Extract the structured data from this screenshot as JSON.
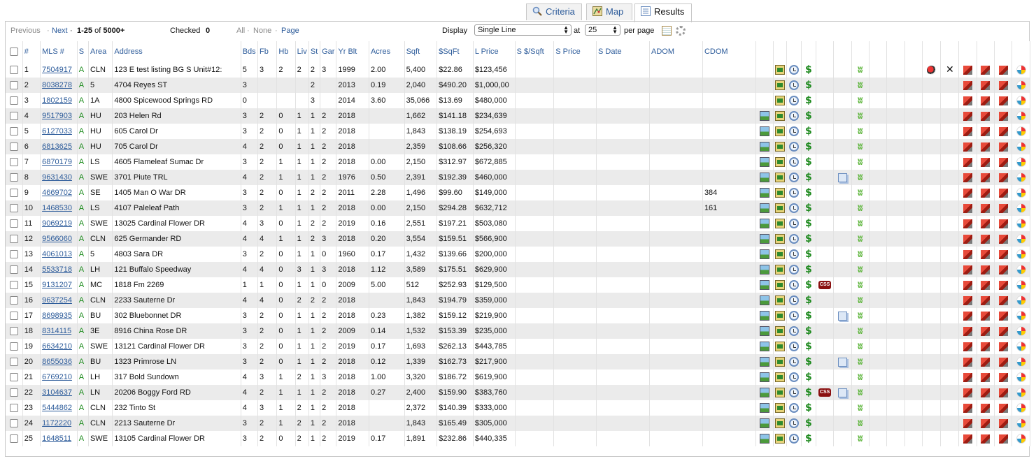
{
  "tabs": [
    {
      "label": "Criteria",
      "icon": "magnifier-icon"
    },
    {
      "label": "Map",
      "icon": "map-icon"
    },
    {
      "label": "Results",
      "icon": "list-icon"
    }
  ],
  "toolbar": {
    "previous": "Previous",
    "sep1": "·",
    "next": "Next",
    "sep2": "·",
    "range": "1-25",
    "of": "of",
    "total": "5000+",
    "checked_label": "Checked",
    "checked_count": "0",
    "all": "All",
    "sep3": "·",
    "none": "None",
    "sep4": "·",
    "page": "Page",
    "display_label": "Display",
    "display_value": "Single Line",
    "at_label": "at",
    "per_page_value": "25",
    "per_page_label": "per page"
  },
  "columns": [
    "#",
    "MLS #",
    "S",
    "Area",
    "Address",
    "Bds",
    "Fb",
    "Hb",
    "Liv",
    "St",
    "Gar",
    "Yr Blt",
    "Acres",
    "Sqft",
    "$SqFt",
    "L Price",
    "S $/Sqft",
    "S Price",
    "S Date",
    "ADOM",
    "CDOM"
  ],
  "rows": [
    {
      "num": "1",
      "mls": "7504917",
      "s": "A",
      "area": "CLN",
      "address": "123 E test listing BG S Unit#12:",
      "bds": "5",
      "fb": "3",
      "hb": "2",
      "liv": "2",
      "st": "2",
      "gar": "3",
      "yr": "1999",
      "acres": "2.00",
      "sqft": "5,400",
      "psf": "$22.86",
      "lprice": "$123,456",
      "cdom": ""
    },
    {
      "num": "2",
      "mls": "8038278",
      "s": "A",
      "area": "5",
      "address": "4704 Reyes ST",
      "bds": "3",
      "fb": "",
      "hb": "",
      "liv": "",
      "st": "2",
      "gar": "",
      "yr": "2013",
      "acres": "0.19",
      "sqft": "2,040",
      "psf": "$490.20",
      "lprice": "$1,000,00",
      "cdom": ""
    },
    {
      "num": "3",
      "mls": "1802159",
      "s": "A",
      "area": "1A",
      "address": "4800 Spicewood Springs RD",
      "bds": "0",
      "fb": "",
      "hb": "",
      "liv": "",
      "st": "3",
      "gar": "",
      "yr": "2014",
      "acres": "3.60",
      "sqft": "35,066",
      "psf": "$13.69",
      "lprice": "$480,000",
      "cdom": ""
    },
    {
      "num": "4",
      "mls": "9517903",
      "s": "A",
      "area": "HU",
      "address": "203 Helen Rd",
      "bds": "3",
      "fb": "2",
      "hb": "0",
      "liv": "1",
      "st": "1",
      "gar": "2",
      "yr": "2018",
      "acres": "",
      "sqft": "1,662",
      "psf": "$141.18",
      "lprice": "$234,639",
      "cdom": ""
    },
    {
      "num": "5",
      "mls": "6127033",
      "s": "A",
      "area": "HU",
      "address": "605 Carol Dr",
      "bds": "3",
      "fb": "2",
      "hb": "0",
      "liv": "1",
      "st": "1",
      "gar": "2",
      "yr": "2018",
      "acres": "",
      "sqft": "1,843",
      "psf": "$138.19",
      "lprice": "$254,693",
      "cdom": ""
    },
    {
      "num": "6",
      "mls": "6813625",
      "s": "A",
      "area": "HU",
      "address": "705 Carol Dr",
      "bds": "4",
      "fb": "2",
      "hb": "0",
      "liv": "1",
      "st": "1",
      "gar": "2",
      "yr": "2018",
      "acres": "",
      "sqft": "2,359",
      "psf": "$108.66",
      "lprice": "$256,320",
      "cdom": ""
    },
    {
      "num": "7",
      "mls": "6870179",
      "s": "A",
      "area": "LS",
      "address": "4605 Flameleaf Sumac Dr",
      "bds": "3",
      "fb": "2",
      "hb": "1",
      "liv": "1",
      "st": "1",
      "gar": "2",
      "yr": "2018",
      "acres": "0.00",
      "sqft": "2,150",
      "psf": "$312.97",
      "lprice": "$672,885",
      "cdom": ""
    },
    {
      "num": "8",
      "mls": "9631430",
      "s": "A",
      "area": "SWE",
      "address": "3701 Piute TRL",
      "bds": "4",
      "fb": "2",
      "hb": "1",
      "liv": "1",
      "st": "1",
      "gar": "2",
      "yr": "1976",
      "acres": "0.50",
      "sqft": "2,391",
      "psf": "$192.39",
      "lprice": "$460,000",
      "cdom": ""
    },
    {
      "num": "9",
      "mls": "4669702",
      "s": "A",
      "area": "SE",
      "address": "1405 Man O War DR",
      "bds": "3",
      "fb": "2",
      "hb": "0",
      "liv": "1",
      "st": "2",
      "gar": "2",
      "yr": "2011",
      "acres": "2.28",
      "sqft": "1,496",
      "psf": "$99.60",
      "lprice": "$149,000",
      "cdom": "384"
    },
    {
      "num": "10",
      "mls": "1468530",
      "s": "A",
      "area": "LS",
      "address": "4107 Paleleaf Path",
      "bds": "3",
      "fb": "2",
      "hb": "1",
      "liv": "1",
      "st": "1",
      "gar": "2",
      "yr": "2018",
      "acres": "0.00",
      "sqft": "2,150",
      "psf": "$294.28",
      "lprice": "$632,712",
      "cdom": "161"
    },
    {
      "num": "11",
      "mls": "9069219",
      "s": "A",
      "area": "SWE",
      "address": "13025 Cardinal Flower DR",
      "bds": "4",
      "fb": "3",
      "hb": "0",
      "liv": "1",
      "st": "2",
      "gar": "2",
      "yr": "2019",
      "acres": "0.16",
      "sqft": "2,551",
      "psf": "$197.21",
      "lprice": "$503,080",
      "cdom": ""
    },
    {
      "num": "12",
      "mls": "9566060",
      "s": "A",
      "area": "CLN",
      "address": "625 Germander RD",
      "bds": "4",
      "fb": "4",
      "hb": "1",
      "liv": "1",
      "st": "2",
      "gar": "3",
      "yr": "2018",
      "acres": "0.20",
      "sqft": "3,554",
      "psf": "$159.51",
      "lprice": "$566,900",
      "cdom": ""
    },
    {
      "num": "13",
      "mls": "4061013",
      "s": "A",
      "area": "5",
      "address": "4803 Sara DR",
      "bds": "3",
      "fb": "2",
      "hb": "0",
      "liv": "1",
      "st": "1",
      "gar": "0",
      "yr": "1960",
      "acres": "0.17",
      "sqft": "1,432",
      "psf": "$139.66",
      "lprice": "$200,000",
      "cdom": ""
    },
    {
      "num": "14",
      "mls": "5533718",
      "s": "A",
      "area": "LH",
      "address": "121 Buffalo Speedway",
      "bds": "4",
      "fb": "4",
      "hb": "0",
      "liv": "3",
      "st": "1",
      "gar": "3",
      "yr": "2018",
      "acres": "1.12",
      "sqft": "3,589",
      "psf": "$175.51",
      "lprice": "$629,900",
      "cdom": ""
    },
    {
      "num": "15",
      "mls": "9131207",
      "s": "A",
      "area": "MC",
      "address": "1818 Fm 2269",
      "bds": "1",
      "fb": "1",
      "hb": "0",
      "liv": "1",
      "st": "1",
      "gar": "0",
      "yr": "2009",
      "acres": "5.00",
      "sqft": "512",
      "psf": "$252.93",
      "lprice": "$129,500",
      "cdom": ""
    },
    {
      "num": "16",
      "mls": "9637254",
      "s": "A",
      "area": "CLN",
      "address": "2233 Sauterne Dr",
      "bds": "4",
      "fb": "4",
      "hb": "0",
      "liv": "2",
      "st": "2",
      "gar": "2",
      "yr": "2018",
      "acres": "",
      "sqft": "1,843",
      "psf": "$194.79",
      "lprice": "$359,000",
      "cdom": ""
    },
    {
      "num": "17",
      "mls": "8698935",
      "s": "A",
      "area": "BU",
      "address": "302 Bluebonnet DR",
      "bds": "3",
      "fb": "2",
      "hb": "0",
      "liv": "1",
      "st": "1",
      "gar": "2",
      "yr": "2018",
      "acres": "0.23",
      "sqft": "1,382",
      "psf": "$159.12",
      "lprice": "$219,900",
      "cdom": ""
    },
    {
      "num": "18",
      "mls": "8314115",
      "s": "A",
      "area": "3E",
      "address": "8916 China Rose DR",
      "bds": "3",
      "fb": "2",
      "hb": "0",
      "liv": "1",
      "st": "1",
      "gar": "2",
      "yr": "2009",
      "acres": "0.14",
      "sqft": "1,532",
      "psf": "$153.39",
      "lprice": "$235,000",
      "cdom": ""
    },
    {
      "num": "19",
      "mls": "6634210",
      "s": "A",
      "area": "SWE",
      "address": "13121 Cardinal Flower DR",
      "bds": "3",
      "fb": "2",
      "hb": "0",
      "liv": "1",
      "st": "1",
      "gar": "2",
      "yr": "2019",
      "acres": "0.17",
      "sqft": "1,693",
      "psf": "$262.13",
      "lprice": "$443,785",
      "cdom": ""
    },
    {
      "num": "20",
      "mls": "8655036",
      "s": "A",
      "area": "BU",
      "address": "1323 Primrose LN",
      "bds": "3",
      "fb": "2",
      "hb": "0",
      "liv": "1",
      "st": "1",
      "gar": "2",
      "yr": "2018",
      "acres": "0.12",
      "sqft": "1,339",
      "psf": "$162.73",
      "lprice": "$217,900",
      "cdom": ""
    },
    {
      "num": "21",
      "mls": "6769210",
      "s": "A",
      "area": "LH",
      "address": "317 Bold Sundown",
      "bds": "4",
      "fb": "3",
      "hb": "1",
      "liv": "2",
      "st": "1",
      "gar": "3",
      "yr": "2018",
      "acres": "1.00",
      "sqft": "3,320",
      "psf": "$186.72",
      "lprice": "$619,900",
      "cdom": ""
    },
    {
      "num": "22",
      "mls": "3104637",
      "s": "A",
      "area": "LN",
      "address": "20206 Boggy Ford RD",
      "bds": "4",
      "fb": "2",
      "hb": "1",
      "liv": "1",
      "st": "1",
      "gar": "2",
      "yr": "2018",
      "acres": "0.27",
      "sqft": "2,400",
      "psf": "$159.90",
      "lprice": "$383,760",
      "cdom": ""
    },
    {
      "num": "23",
      "mls": "5444862",
      "s": "A",
      "area": "CLN",
      "address": "232 Tinto St",
      "bds": "4",
      "fb": "3",
      "hb": "1",
      "liv": "2",
      "st": "1",
      "gar": "2",
      "yr": "2018",
      "acres": "",
      "sqft": "2,372",
      "psf": "$140.39",
      "lprice": "$333,000",
      "cdom": ""
    },
    {
      "num": "24",
      "mls": "1172220",
      "s": "A",
      "area": "CLN",
      "address": "2213 Sauterne Dr",
      "bds": "3",
      "fb": "2",
      "hb": "1",
      "liv": "2",
      "st": "1",
      "gar": "2",
      "yr": "2018",
      "acres": "",
      "sqft": "1,843",
      "psf": "$165.49",
      "lprice": "$305,000",
      "cdom": ""
    },
    {
      "num": "25",
      "mls": "1648511",
      "s": "A",
      "area": "SWE",
      "address": "13105 Cardinal Flower DR",
      "bds": "3",
      "fb": "2",
      "hb": "0",
      "liv": "2",
      "st": "1",
      "gar": "2",
      "yr": "2019",
      "acres": "0.17",
      "sqft": "1,891",
      "psf": "$232.86",
      "lprice": "$440,335",
      "cdom": ""
    }
  ],
  "row_icons": {
    "photo_hidden_rows": [
      1,
      2,
      3
    ],
    "css_badge_rows": [
      15,
      22
    ],
    "css_badge_label": "CSS",
    "copy_rows": [
      8,
      17,
      20,
      22
    ],
    "extra_tool_rows": [
      1
    ]
  },
  "colors": {
    "link": "#2c5b9a",
    "status_active": "#1a8a1a",
    "row_alt": "#ebebeb",
    "css_badge": "#8a1010"
  }
}
